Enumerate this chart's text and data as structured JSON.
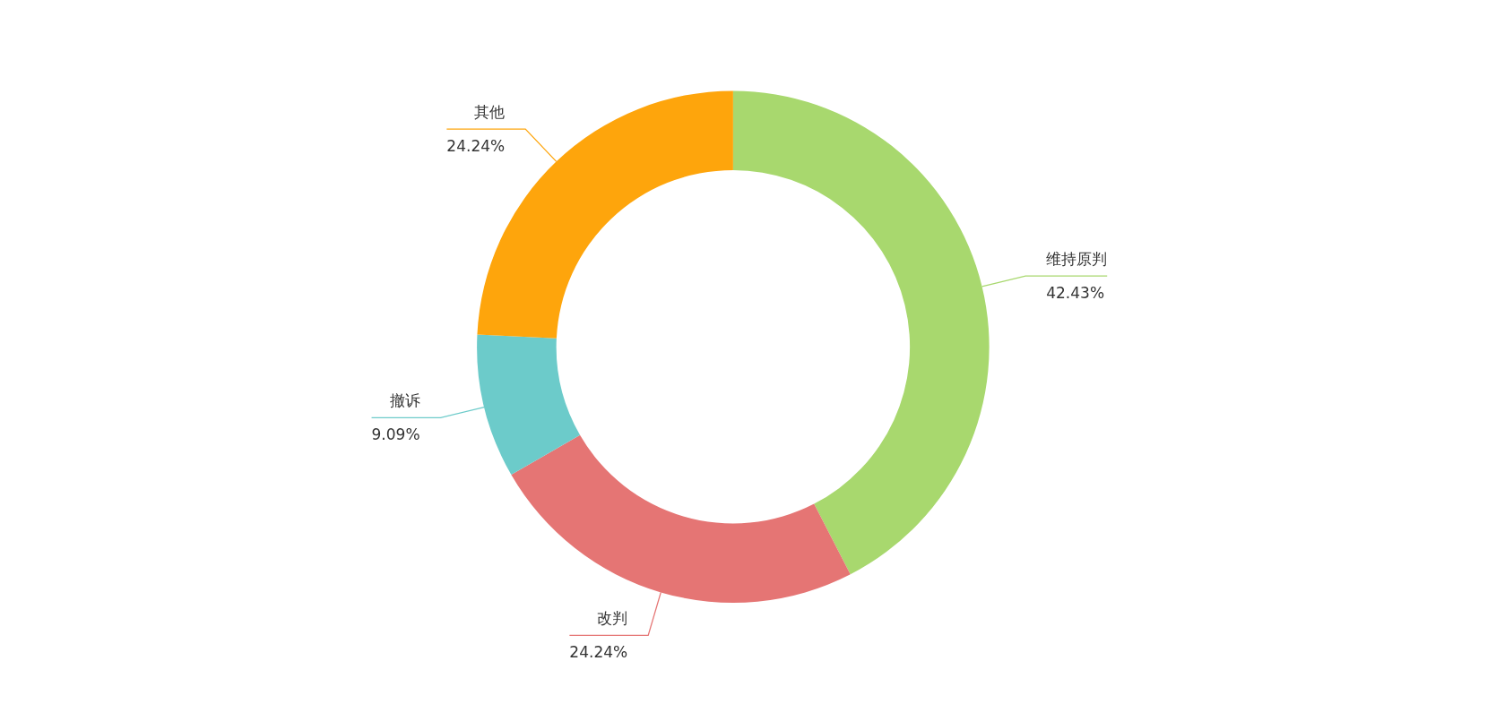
{
  "chart_data": {
    "type": "donut",
    "categories": [
      "维持原判",
      "改判",
      "撤诉",
      "其他"
    ],
    "values": [
      42.43,
      24.24,
      9.09,
      24.24
    ],
    "colors": [
      "#a8d86e",
      "#e57574",
      "#6ccbca",
      "#fea50c"
    ],
    "value_labels": [
      "42.43%",
      "24.24%",
      "9.09%",
      "24.24%"
    ]
  }
}
